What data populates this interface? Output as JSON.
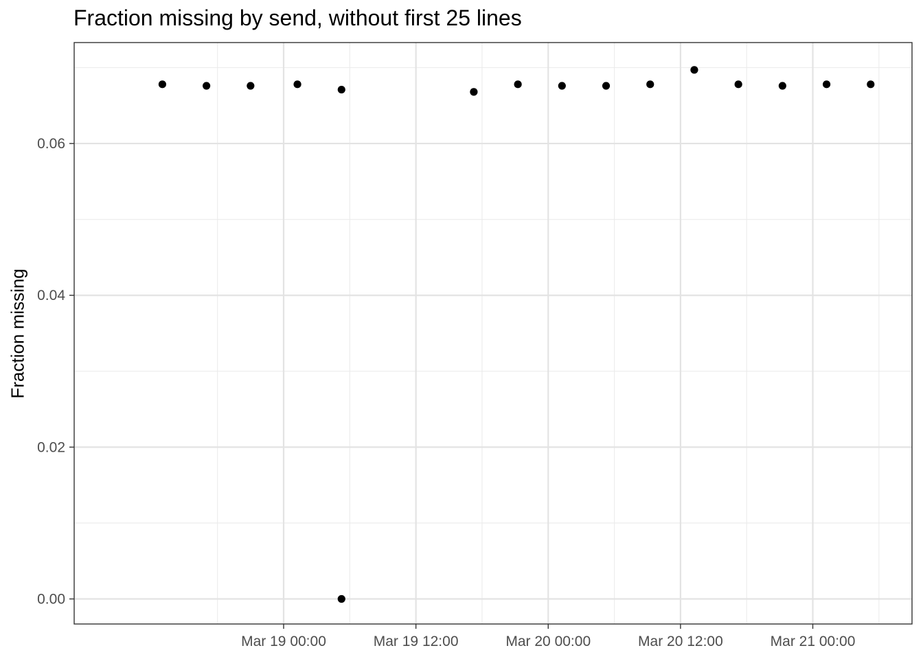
{
  "chart_data": {
    "type": "scatter",
    "title": "Fraction missing by send, without first 25 lines",
    "xlabel": "",
    "ylabel": "Fraction missing",
    "x_axis_type": "datetime",
    "xlim": [
      "2019-03-18 05:00",
      "2019-03-21 09:00"
    ],
    "ylim": [
      -0.0033,
      0.0733
    ],
    "x_ticks": [
      {
        "value": "2019-03-19 00:00",
        "label": "Mar 19 00:00"
      },
      {
        "value": "2019-03-19 12:00",
        "label": "Mar 19 12:00"
      },
      {
        "value": "2019-03-20 00:00",
        "label": "Mar 20 00:00"
      },
      {
        "value": "2019-03-20 12:00",
        "label": "Mar 20 12:00"
      },
      {
        "value": "2019-03-21 00:00",
        "label": "Mar 21 00:00"
      }
    ],
    "x_minor_ticks": [
      "2019-03-18 18:00",
      "2019-03-19 06:00",
      "2019-03-19 18:00",
      "2019-03-20 06:00",
      "2019-03-20 18:00",
      "2019-03-21 06:00"
    ],
    "y_ticks": [
      {
        "value": 0.0,
        "label": "0.00"
      },
      {
        "value": 0.02,
        "label": "0.02"
      },
      {
        "value": 0.04,
        "label": "0.04"
      },
      {
        "value": 0.06,
        "label": "0.06"
      }
    ],
    "y_minor_ticks": [
      0.01,
      0.03,
      0.05,
      0.07
    ],
    "grid": true,
    "legend": "none",
    "point_color": "#000000",
    "points": [
      {
        "x": "2019-03-18 13:00",
        "y": 0.0678
      },
      {
        "x": "2019-03-18 17:00",
        "y": 0.0676
      },
      {
        "x": "2019-03-18 21:00",
        "y": 0.0676
      },
      {
        "x": "2019-03-19 01:15",
        "y": 0.0678
      },
      {
        "x": "2019-03-19 05:15",
        "y": 0.0671
      },
      {
        "x": "2019-03-19 05:15",
        "y": 0.0
      },
      {
        "x": "2019-03-19 17:15",
        "y": 0.0668
      },
      {
        "x": "2019-03-19 21:15",
        "y": 0.0678
      },
      {
        "x": "2019-03-20 01:15",
        "y": 0.0676
      },
      {
        "x": "2019-03-20 05:15",
        "y": 0.0676
      },
      {
        "x": "2019-03-20 09:15",
        "y": 0.0678
      },
      {
        "x": "2019-03-20 13:15",
        "y": 0.0697
      },
      {
        "x": "2019-03-20 17:15",
        "y": 0.0678
      },
      {
        "x": "2019-03-20 21:15",
        "y": 0.0676
      },
      {
        "x": "2019-03-21 01:15",
        "y": 0.0678
      },
      {
        "x": "2019-03-21 05:15",
        "y": 0.0678
      }
    ]
  }
}
